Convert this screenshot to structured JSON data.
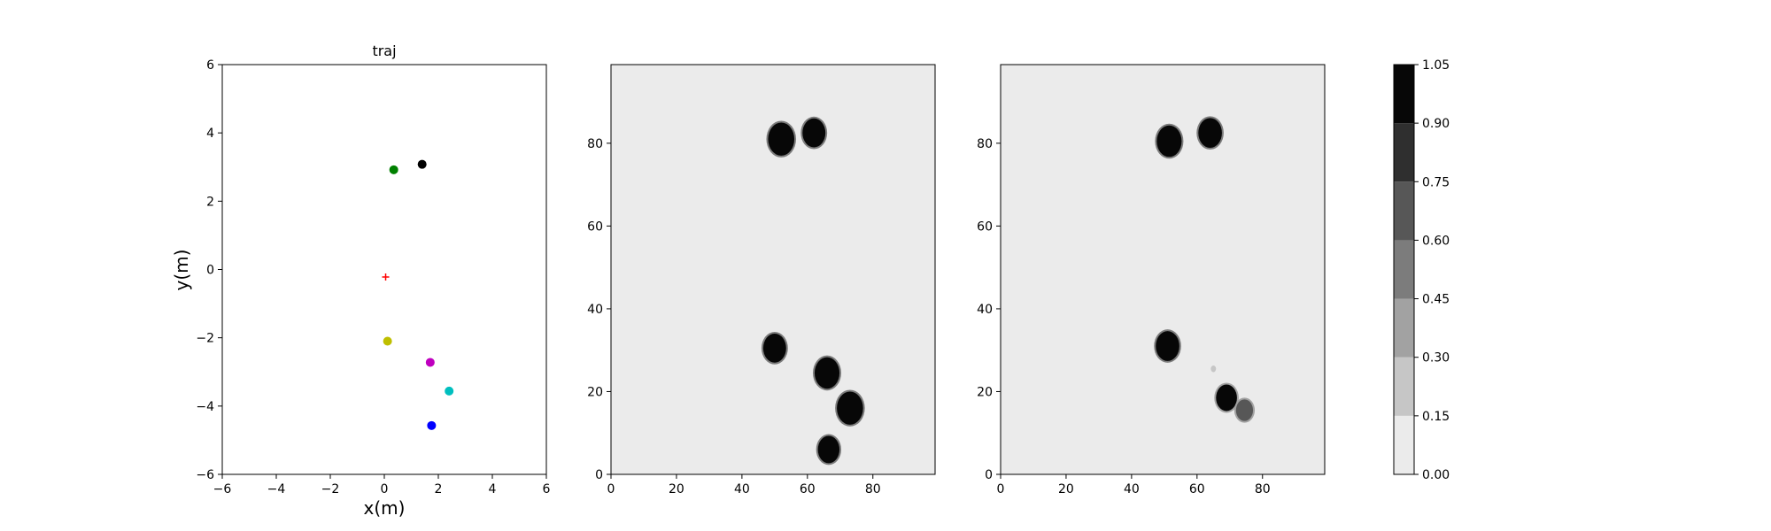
{
  "chart_data": [
    {
      "type": "scatter",
      "title": "traj",
      "xlabel": "x(m)",
      "ylabel": "y(m)",
      "xlim": [
        -6,
        6
      ],
      "ylim": [
        -6,
        6
      ],
      "xticks": [
        -6,
        -4,
        -2,
        0,
        2,
        4,
        6
      ],
      "yticks": [
        -6,
        -4,
        -2,
        0,
        2,
        4,
        6
      ],
      "grid": false,
      "points": [
        {
          "x": 0.35,
          "y": 2.92,
          "color": "#008000",
          "marker": "circle"
        },
        {
          "x": 1.4,
          "y": 3.08,
          "color": "#000000",
          "marker": "circle"
        },
        {
          "x": 0.05,
          "y": -0.22,
          "color": "#ff0000",
          "marker": "plus"
        },
        {
          "x": 0.12,
          "y": -2.1,
          "color": "#bfbf00",
          "marker": "circle"
        },
        {
          "x": 1.7,
          "y": -2.72,
          "color": "#bf00bf",
          "marker": "circle"
        },
        {
          "x": 2.4,
          "y": -3.56,
          "color": "#00bfbf",
          "marker": "circle"
        },
        {
          "x": 1.75,
          "y": -4.57,
          "color": "#0000ff",
          "marker": "circle"
        }
      ]
    },
    {
      "type": "heatmap",
      "xlim": [
        0,
        99
      ],
      "ylim": [
        0,
        99
      ],
      "xticks": [
        0,
        20,
        40,
        60,
        80
      ],
      "yticks": [
        0,
        20,
        40,
        60,
        80
      ],
      "background_value": 0.0,
      "blobs": [
        {
          "x": 52,
          "y": 81,
          "r": 4,
          "value": 1.0
        },
        {
          "x": 62,
          "y": 82.5,
          "r": 3.5,
          "value": 1.0
        },
        {
          "x": 50,
          "y": 30.5,
          "r": 3.5,
          "value": 1.0
        },
        {
          "x": 66,
          "y": 24.5,
          "r": 3.8,
          "value": 1.0
        },
        {
          "x": 73,
          "y": 16,
          "r": 4,
          "value": 1.0
        },
        {
          "x": 66.5,
          "y": 6,
          "r": 3.3,
          "value": 1.0
        }
      ]
    },
    {
      "type": "heatmap",
      "xlim": [
        0,
        99
      ],
      "ylim": [
        0,
        99
      ],
      "xticks": [
        0,
        20,
        40,
        60,
        80
      ],
      "yticks": [
        0,
        20,
        40,
        60,
        80
      ],
      "background_value": 0.0,
      "blobs": [
        {
          "x": 51.5,
          "y": 80.5,
          "r": 3.8,
          "value": 1.0
        },
        {
          "x": 64,
          "y": 82.5,
          "r": 3.6,
          "value": 1.0
        },
        {
          "x": 51,
          "y": 31,
          "r": 3.6,
          "value": 1.0
        },
        {
          "x": 69,
          "y": 18.5,
          "r": 3.2,
          "value": 0.95
        },
        {
          "x": 74.5,
          "y": 15.5,
          "r": 2.6,
          "value": 0.7
        },
        {
          "x": 65,
          "y": 25.5,
          "r": 0.8,
          "value": 0.2
        }
      ]
    }
  ],
  "colorbar": {
    "levels": [
      0.0,
      0.15,
      0.3,
      0.45,
      0.6,
      0.75,
      0.9,
      1.05
    ],
    "tick_labels": [
      "0.00",
      "0.15",
      "0.30",
      "0.45",
      "0.60",
      "0.75",
      "0.90",
      "1.05"
    ],
    "colors": [
      "#ebebeb",
      "#c6c6c6",
      "#a2a2a2",
      "#7c7c7c",
      "#575757",
      "#2f2f2f",
      "#070707"
    ]
  }
}
